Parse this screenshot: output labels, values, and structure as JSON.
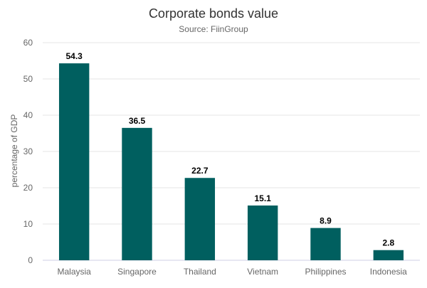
{
  "chart_data": {
    "type": "bar",
    "title": "Corporate bonds value",
    "subtitle": "Source: FiinGroup",
    "xlabel": "",
    "ylabel": "percentage of GDP",
    "categories": [
      "Malaysia",
      "Singapore",
      "Thailand",
      "Vietnam",
      "Philippines",
      "Indonesia"
    ],
    "values": [
      54.3,
      36.5,
      22.7,
      15.1,
      8.9,
      2.8
    ],
    "data_labels": [
      "54.3",
      "36.5",
      "22.7",
      "15.1",
      "8.9",
      "2.8"
    ],
    "ylim": [
      0,
      60
    ],
    "yticks": [
      0,
      10,
      20,
      30,
      40,
      50,
      60
    ],
    "grid": true,
    "legend": "none",
    "colors": {
      "bar": "#005f5f",
      "grid": "#e6e6e6",
      "axis_text": "#666666",
      "title": "#333333",
      "data_label": "#000000"
    }
  }
}
